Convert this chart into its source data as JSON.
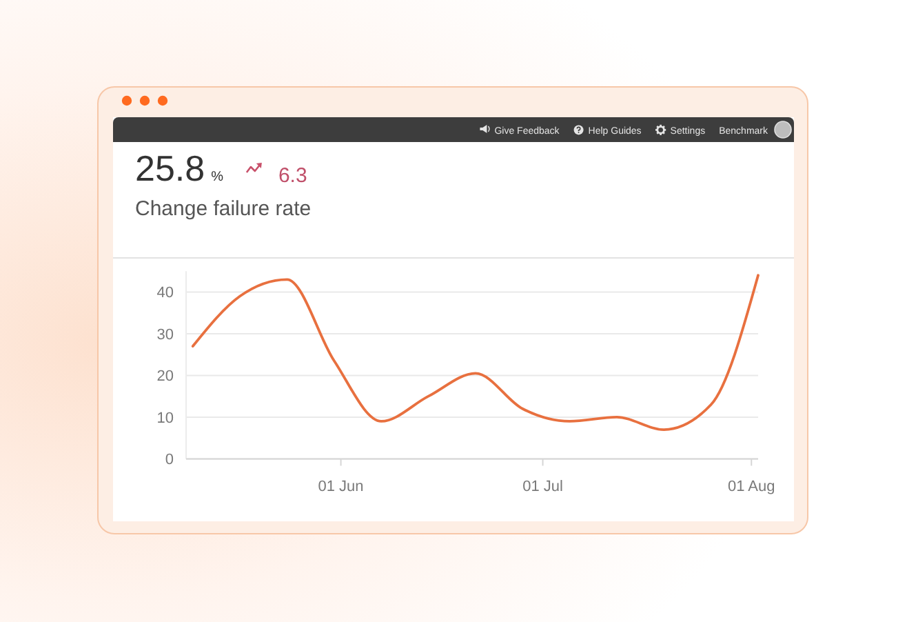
{
  "chart_data": {
    "type": "line",
    "title": "Change failure rate",
    "annotations": [
      "25.8 %",
      "6.3",
      "Give Feedback",
      "Help Guides",
      "Settings",
      "Benchmark"
    ],
    "x": [
      "--05-10",
      "--05-17",
      "--05-24",
      "--05-31",
      "--06-07",
      "--06-14",
      "--06-21",
      "--06-28",
      "--07-05",
      "--07-12",
      "--07-19",
      "--07-26",
      "--08-02"
    ],
    "series": [
      {
        "color": "#e8703f",
        "values": [
          27,
          39,
          43,
          23.5,
          9,
          15,
          20.5,
          12,
          9,
          10,
          7,
          13,
          44
        ]
      }
    ],
    "xlim": [
      "--05-09",
      "--08-02"
    ],
    "xticks": [
      {
        "value": "--06-01",
        "label": "01 Jun"
      },
      {
        "value": "--07-01",
        "label": "01 Jul"
      },
      {
        "value": "--08-01",
        "label": "01 Aug"
      }
    ],
    "ylim": [
      0,
      45
    ],
    "yticks": [
      0,
      10,
      20,
      30,
      40
    ],
    "grid": "y"
  }
}
